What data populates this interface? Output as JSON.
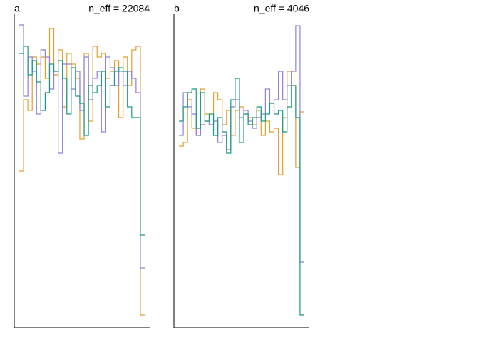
{
  "chart_data": [
    {
      "type": "step",
      "title": "a",
      "annotation": "n_eff = 22084",
      "ylim": [
        0,
        440
      ],
      "series": [
        {
          "color": "#e0a030",
          "values": [
            220,
            320,
            305,
            380,
            370,
            380,
            350,
            420,
            355,
            390,
            310,
            385,
            370,
            350,
            265,
            385,
            290,
            395,
            380,
            385,
            350,
            360,
            375,
            295,
            380,
            340,
            390,
            395,
            18
          ]
        },
        {
          "color": "#8f80d8",
          "values": [
            425,
            325,
            380,
            360,
            300,
            390,
            380,
            335,
            360,
            245,
            370,
            370,
            335,
            360,
            305,
            380,
            320,
            350,
            360,
            275,
            380,
            365,
            340,
            360,
            340,
            360,
            350,
            330,
            84
          ]
        },
        {
          "color": "#1a9a85",
          "values": [
            385,
            395,
            355,
            375,
            345,
            305,
            330,
            370,
            360,
            375,
            350,
            300,
            365,
            325,
            315,
            270,
            340,
            330,
            340,
            360,
            310,
            340,
            360,
            365,
            360,
            310,
            295,
            295,
            130
          ]
        }
      ]
    },
    {
      "type": "step",
      "title": "b",
      "annotation": "n_eff = 4046",
      "ylim": [
        0,
        440
      ],
      "series": [
        {
          "color": "#e0a030",
          "values": [
            255,
            260,
            320,
            280,
            270,
            335,
            300,
            285,
            330,
            320,
            285,
            305,
            270,
            305,
            310,
            300,
            295,
            285,
            305,
            270,
            290,
            275,
            280,
            215,
            295,
            360,
            340,
            225,
            303
          ]
        },
        {
          "color": "#8f80d8",
          "values": [
            270,
            330,
            310,
            300,
            270,
            285,
            290,
            285,
            290,
            260,
            270,
            250,
            310,
            320,
            295,
            305,
            290,
            280,
            295,
            300,
            335,
            315,
            320,
            360,
            320,
            340,
            360,
            424,
            92
          ]
        },
        {
          "color": "#1a9a85",
          "values": [
            290,
            310,
            330,
            335,
            280,
            330,
            290,
            300,
            270,
            295,
            275,
            245,
            320,
            350,
            260,
            300,
            285,
            295,
            310,
            290,
            300,
            315,
            300,
            305,
            275,
            310,
            340,
            295,
            18
          ]
        }
      ]
    }
  ]
}
